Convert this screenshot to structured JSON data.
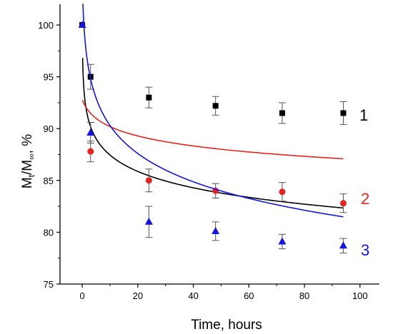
{
  "chart_data": {
    "type": "scatter",
    "xlabel": "Time, hours",
    "ylabel": {
      "main": "M",
      "sub1": "t",
      "mid": "/M",
      "sub2": "∞",
      "tail": ", %"
    },
    "xlim": [
      -8,
      107
    ],
    "ylim": [
      75,
      102
    ],
    "xticks": [
      0,
      20,
      40,
      60,
      80,
      100
    ],
    "yticks": [
      75,
      80,
      85,
      90,
      95,
      100
    ],
    "grid": false,
    "series": [
      {
        "name": "1",
        "color": "#000000",
        "marker": "square",
        "x": [
          0,
          3,
          24,
          48,
          72,
          94
        ],
        "y": [
          100,
          95,
          93,
          92.2,
          91.5,
          91.5
        ],
        "yerr": [
          0,
          1.2,
          1.0,
          0.9,
          1.0,
          1.1
        ],
        "fit": {
          "a": 92.7,
          "b": 2.28,
          "c": 0.0137,
          "from": 0.15,
          "to": 94
        }
      },
      {
        "name": "2",
        "color": "#e8231b",
        "marker": "circle",
        "x": [
          3,
          24,
          48,
          72,
          94
        ],
        "y": [
          87.8,
          85,
          84,
          83.9,
          82.8
        ],
        "yerr": [
          1.0,
          1.1,
          0.7,
          0.9,
          0.9
        ],
        "fit": {
          "a": 93.94,
          "b": 1.5,
          "c": 2.16,
          "from": 0.1,
          "to": 94
        }
      },
      {
        "name": "3",
        "color": "#1414e6",
        "marker": "triangle",
        "x": [
          0,
          3,
          24,
          48,
          72,
          94
        ],
        "y": [
          100,
          89.6,
          81,
          80.1,
          79.1,
          78.7
        ],
        "yerr": [
          0,
          1.0,
          1.5,
          0.9,
          0.7,
          0.7
        ],
        "fit": {
          "a": 99.58,
          "b": 3.98,
          "c": 0.3,
          "from": 0.05,
          "to": 94
        }
      }
    ]
  }
}
